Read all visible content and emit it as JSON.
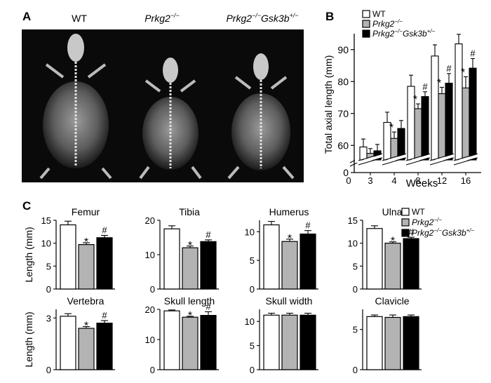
{
  "panel_labels": {
    "a": "A",
    "b": "B",
    "c": "C"
  },
  "panel_a": {
    "image_labels": [
      {
        "name": "WT",
        "italic": false
      },
      {
        "name": "Prkg2",
        "sup": "−/−",
        "italic": true
      },
      {
        "name": "Prkg2",
        "sup": "−/−",
        "name2": "Gsk3b",
        "sup2": "+/−",
        "italic": true
      }
    ],
    "image_description": "X-ray radiographs of mice, dorsal view"
  },
  "legend": {
    "entries": [
      {
        "text": "WT",
        "sup": "",
        "suffix": "",
        "sup2": "",
        "color": "#ffffff"
      },
      {
        "text": "Prkg2",
        "sup": "−/−",
        "suffix": "",
        "sup2": "",
        "color": "#b3b3b3"
      },
      {
        "text": "Prkg2",
        "sup": "−/−",
        "suffix": "Gsk3b",
        "sup2": "+/−",
        "color": "#000000"
      }
    ]
  },
  "colors": {
    "wt": "#ffffff",
    "prkg2": "#b3b3b3",
    "double": "#000000",
    "xray_bg": "#0a0a0a"
  },
  "chart_data": [
    {
      "panel": "B",
      "type": "bar",
      "xlabel": "Weeks",
      "ylabel": "Total axial length (mm)",
      "ylim": [
        55,
        95
      ],
      "axis_break": true,
      "yticks": [
        0,
        60,
        70,
        80,
        90
      ],
      "categories": [
        "3",
        "4",
        "8",
        "12",
        "16"
      ],
      "x_zero_label": "0",
      "series": [
        {
          "name": "WT",
          "values": [
            59.5,
            67.2,
            78.5,
            88,
            91.8
          ],
          "errors": [
            2.5,
            3.2,
            3.5,
            3.5,
            3
          ]
        },
        {
          "name": "Prkg2−/−",
          "values": [
            57.5,
            62.2,
            71.5,
            76.2,
            78
          ],
          "errors": [
            1.5,
            2,
            1.5,
            2,
            3.5
          ]
        },
        {
          "name": "Prkg2−/−Gsk3b+/−",
          "values": [
            58.3,
            65.3,
            75.3,
            79.5,
            84.2
          ],
          "errors": [
            2,
            2.5,
            1.5,
            3,
            3
          ]
        }
      ],
      "annotations": {
        "star_prkg2": [
          false,
          true,
          true,
          true,
          true
        ],
        "hash_double": [
          false,
          false,
          true,
          true,
          true
        ]
      }
    },
    {
      "panel": "C",
      "title": "Femur",
      "type": "bar",
      "ylabel": "Length (mm)",
      "ylim": [
        0,
        15
      ],
      "yticks": [
        0,
        5,
        10,
        15
      ],
      "categories": [
        "WT",
        "Prkg2−/−",
        "Prkg2−/−Gsk3b+/−"
      ],
      "values": [
        14,
        9.7,
        11.2
      ],
      "errors": [
        0.8,
        0.4,
        0.5
      ],
      "star": true,
      "hash": true
    },
    {
      "panel": "C",
      "title": "Tibia",
      "type": "bar",
      "ylim": [
        0,
        20
      ],
      "yticks": [
        0,
        10,
        20
      ],
      "categories": [
        "WT",
        "Prkg2−/−",
        "Prkg2−/−Gsk3b+/−"
      ],
      "values": [
        17.5,
        12,
        13.8
      ],
      "errors": [
        0.9,
        0.5,
        0.5
      ],
      "star": true,
      "hash": true
    },
    {
      "panel": "C",
      "title": "Humerus",
      "type": "bar",
      "ylim": [
        0,
        12
      ],
      "yticks": [
        0,
        5,
        10
      ],
      "categories": [
        "WT",
        "Prkg2−/−",
        "Prkg2−/−Gsk3b+/−"
      ],
      "values": [
        11.2,
        8.3,
        9.6
      ],
      "errors": [
        0.6,
        0.4,
        0.6
      ],
      "star": true,
      "hash": true
    },
    {
      "panel": "C",
      "title": "Ulna",
      "type": "bar",
      "ylim": [
        0,
        15
      ],
      "yticks": [
        0,
        5,
        10,
        15
      ],
      "categories": [
        "WT",
        "Prkg2−/−",
        "Prkg2−/−Gsk3b+/−"
      ],
      "values": [
        13.2,
        10,
        11
      ],
      "errors": [
        0.6,
        0.3,
        0.3
      ],
      "star": true,
      "hash": true
    },
    {
      "panel": "C",
      "title": "Vertebra",
      "type": "bar",
      "ylabel": "Length (mm)",
      "ylim": [
        0,
        3.5
      ],
      "yticks": [
        0,
        3
      ],
      "categories": [
        "WT",
        "Prkg2−/−",
        "Prkg2−/−Gsk3b+/−"
      ],
      "values": [
        3.1,
        2.4,
        2.7
      ],
      "errors": [
        0.15,
        0.1,
        0.15
      ],
      "star": true,
      "hash": true
    },
    {
      "panel": "C",
      "title": "Skull length",
      "type": "bar",
      "ylim": [
        0,
        20
      ],
      "yticks": [
        0,
        10,
        20
      ],
      "categories": [
        "WT",
        "Prkg2−/−",
        "Prkg2−/−Gsk3b+/−"
      ],
      "values": [
        19.5,
        17.4,
        18
      ],
      "errors": [
        0.3,
        0.3,
        1.2
      ],
      "star": true,
      "hash": true
    },
    {
      "panel": "C",
      "title": "Skull width",
      "type": "bar",
      "ylim": [
        0,
        12.5
      ],
      "yticks": [
        0,
        5,
        10
      ],
      "categories": [
        "WT",
        "Prkg2−/−",
        "Prkg2−/−Gsk3b+/−"
      ],
      "values": [
        11.3,
        11.3,
        11.3
      ],
      "errors": [
        0.4,
        0.4,
        0.4
      ],
      "star": false,
      "hash": false
    },
    {
      "panel": "C",
      "title": "Clavicle",
      "type": "bar",
      "ylim": [
        0,
        7.5
      ],
      "yticks": [
        0,
        5
      ],
      "categories": [
        "WT",
        "Prkg2−/−",
        "Prkg2−/−Gsk3b+/−"
      ],
      "values": [
        6.6,
        6.5,
        6.6
      ],
      "errors": [
        0.2,
        0.3,
        0.2
      ],
      "star": false,
      "hash": false
    }
  ]
}
